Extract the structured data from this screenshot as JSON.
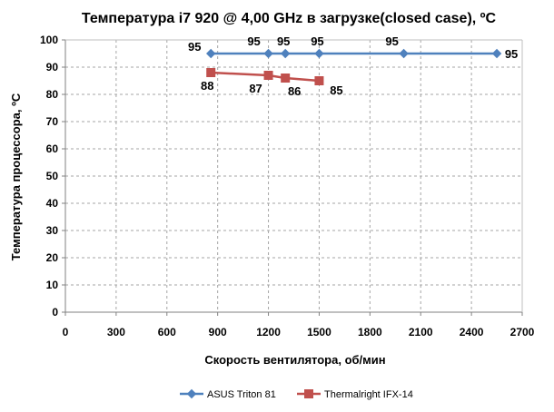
{
  "chart_data": {
    "type": "line",
    "title": "Температура i7 920 @ 4,00 GHz в загрузке(closed case), ºC",
    "xlabel": "Скорость вентилятора, об/мин",
    "ylabel": "Температура процессора, ºC",
    "xlim": [
      0,
      2700
    ],
    "ylim": [
      0,
      100
    ],
    "x_ticks": [
      "0",
      "300",
      "600",
      "900",
      "1200",
      "1500",
      "1800",
      "2100",
      "2400",
      "2700"
    ],
    "y_ticks": [
      "0",
      "10",
      "20",
      "30",
      "40",
      "50",
      "60",
      "70",
      "80",
      "90",
      "100"
    ],
    "grid": true,
    "grid_style": "dashed",
    "legend_position": "bottom",
    "series": [
      {
        "name": "ASUS Triton 81",
        "color": "#4F81BD",
        "marker": "diamond",
        "points": [
          {
            "x": 860,
            "y": 95,
            "label": "95"
          },
          {
            "x": 1200,
            "y": 95,
            "label": "95"
          },
          {
            "x": 1300,
            "y": 95,
            "label": "95"
          },
          {
            "x": 1500,
            "y": 95,
            "label": "95"
          },
          {
            "x": 2000,
            "y": 95,
            "label": "95"
          },
          {
            "x": 2550,
            "y": 95,
            "label": "95"
          }
        ]
      },
      {
        "name": "Thermalright IFX-14",
        "color": "#C0504D",
        "marker": "square",
        "points": [
          {
            "x": 860,
            "y": 88,
            "label": "88"
          },
          {
            "x": 1200,
            "y": 87,
            "label": "87"
          },
          {
            "x": 1300,
            "y": 86,
            "label": "86"
          },
          {
            "x": 1500,
            "y": 85,
            "label": "85"
          }
        ]
      }
    ]
  }
}
